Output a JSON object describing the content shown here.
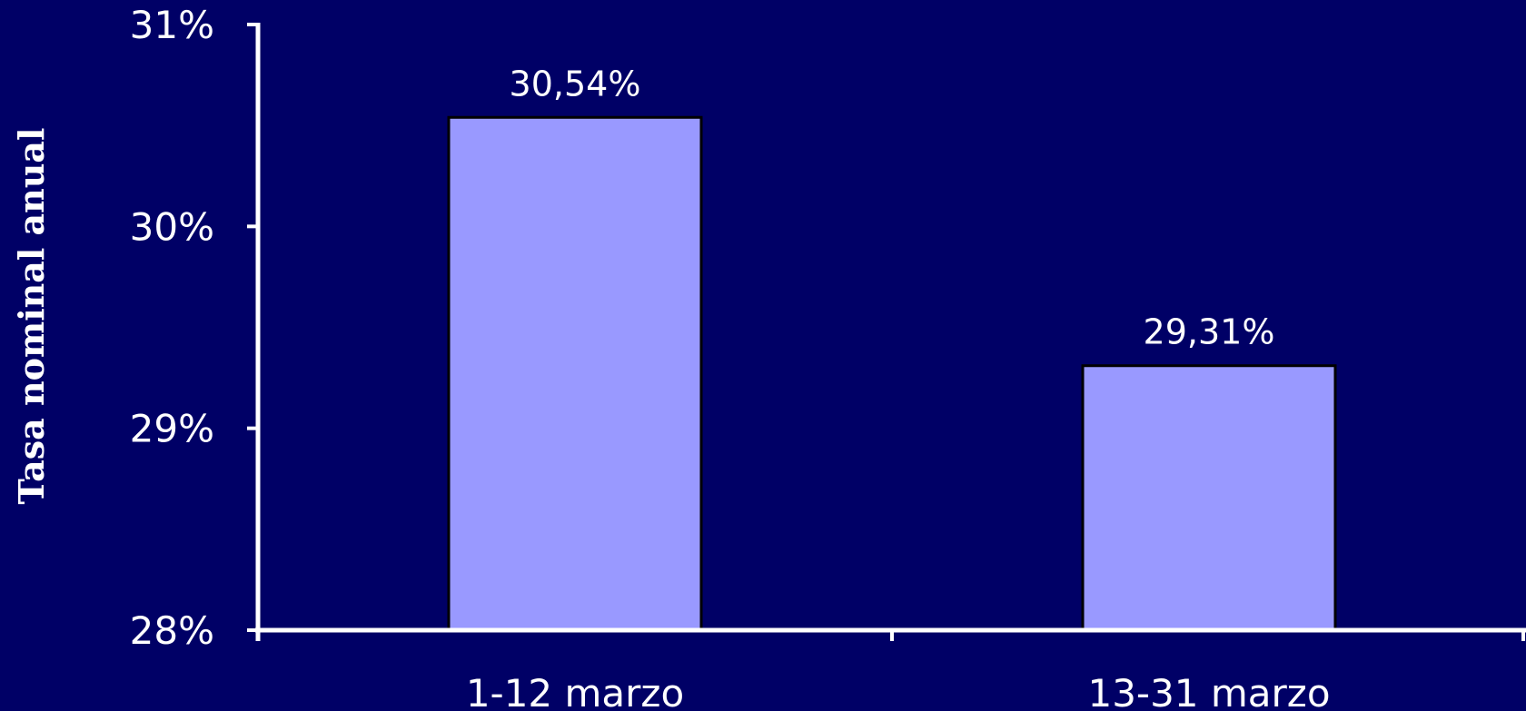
{
  "chart_data": {
    "type": "bar",
    "categories": [
      "1-12 marzo",
      "13-31 marzo"
    ],
    "values": [
      30.54,
      29.31
    ],
    "data_labels": [
      "30,54%",
      "29,31%"
    ],
    "title": "",
    "xlabel": "",
    "ylabel": "Tasa nominal anual",
    "ylim": [
      28,
      31
    ],
    "yticks": [
      28,
      29,
      30,
      31
    ],
    "ytick_labels": [
      "28%",
      "29%",
      "30%",
      "31%"
    ],
    "grid": false,
    "legend": "none"
  },
  "colors": {
    "background": "#000066",
    "bar_fill": "#9999ff",
    "bar_stroke": "#000000",
    "axis": "#ffffff",
    "text": "#ffffff"
  }
}
